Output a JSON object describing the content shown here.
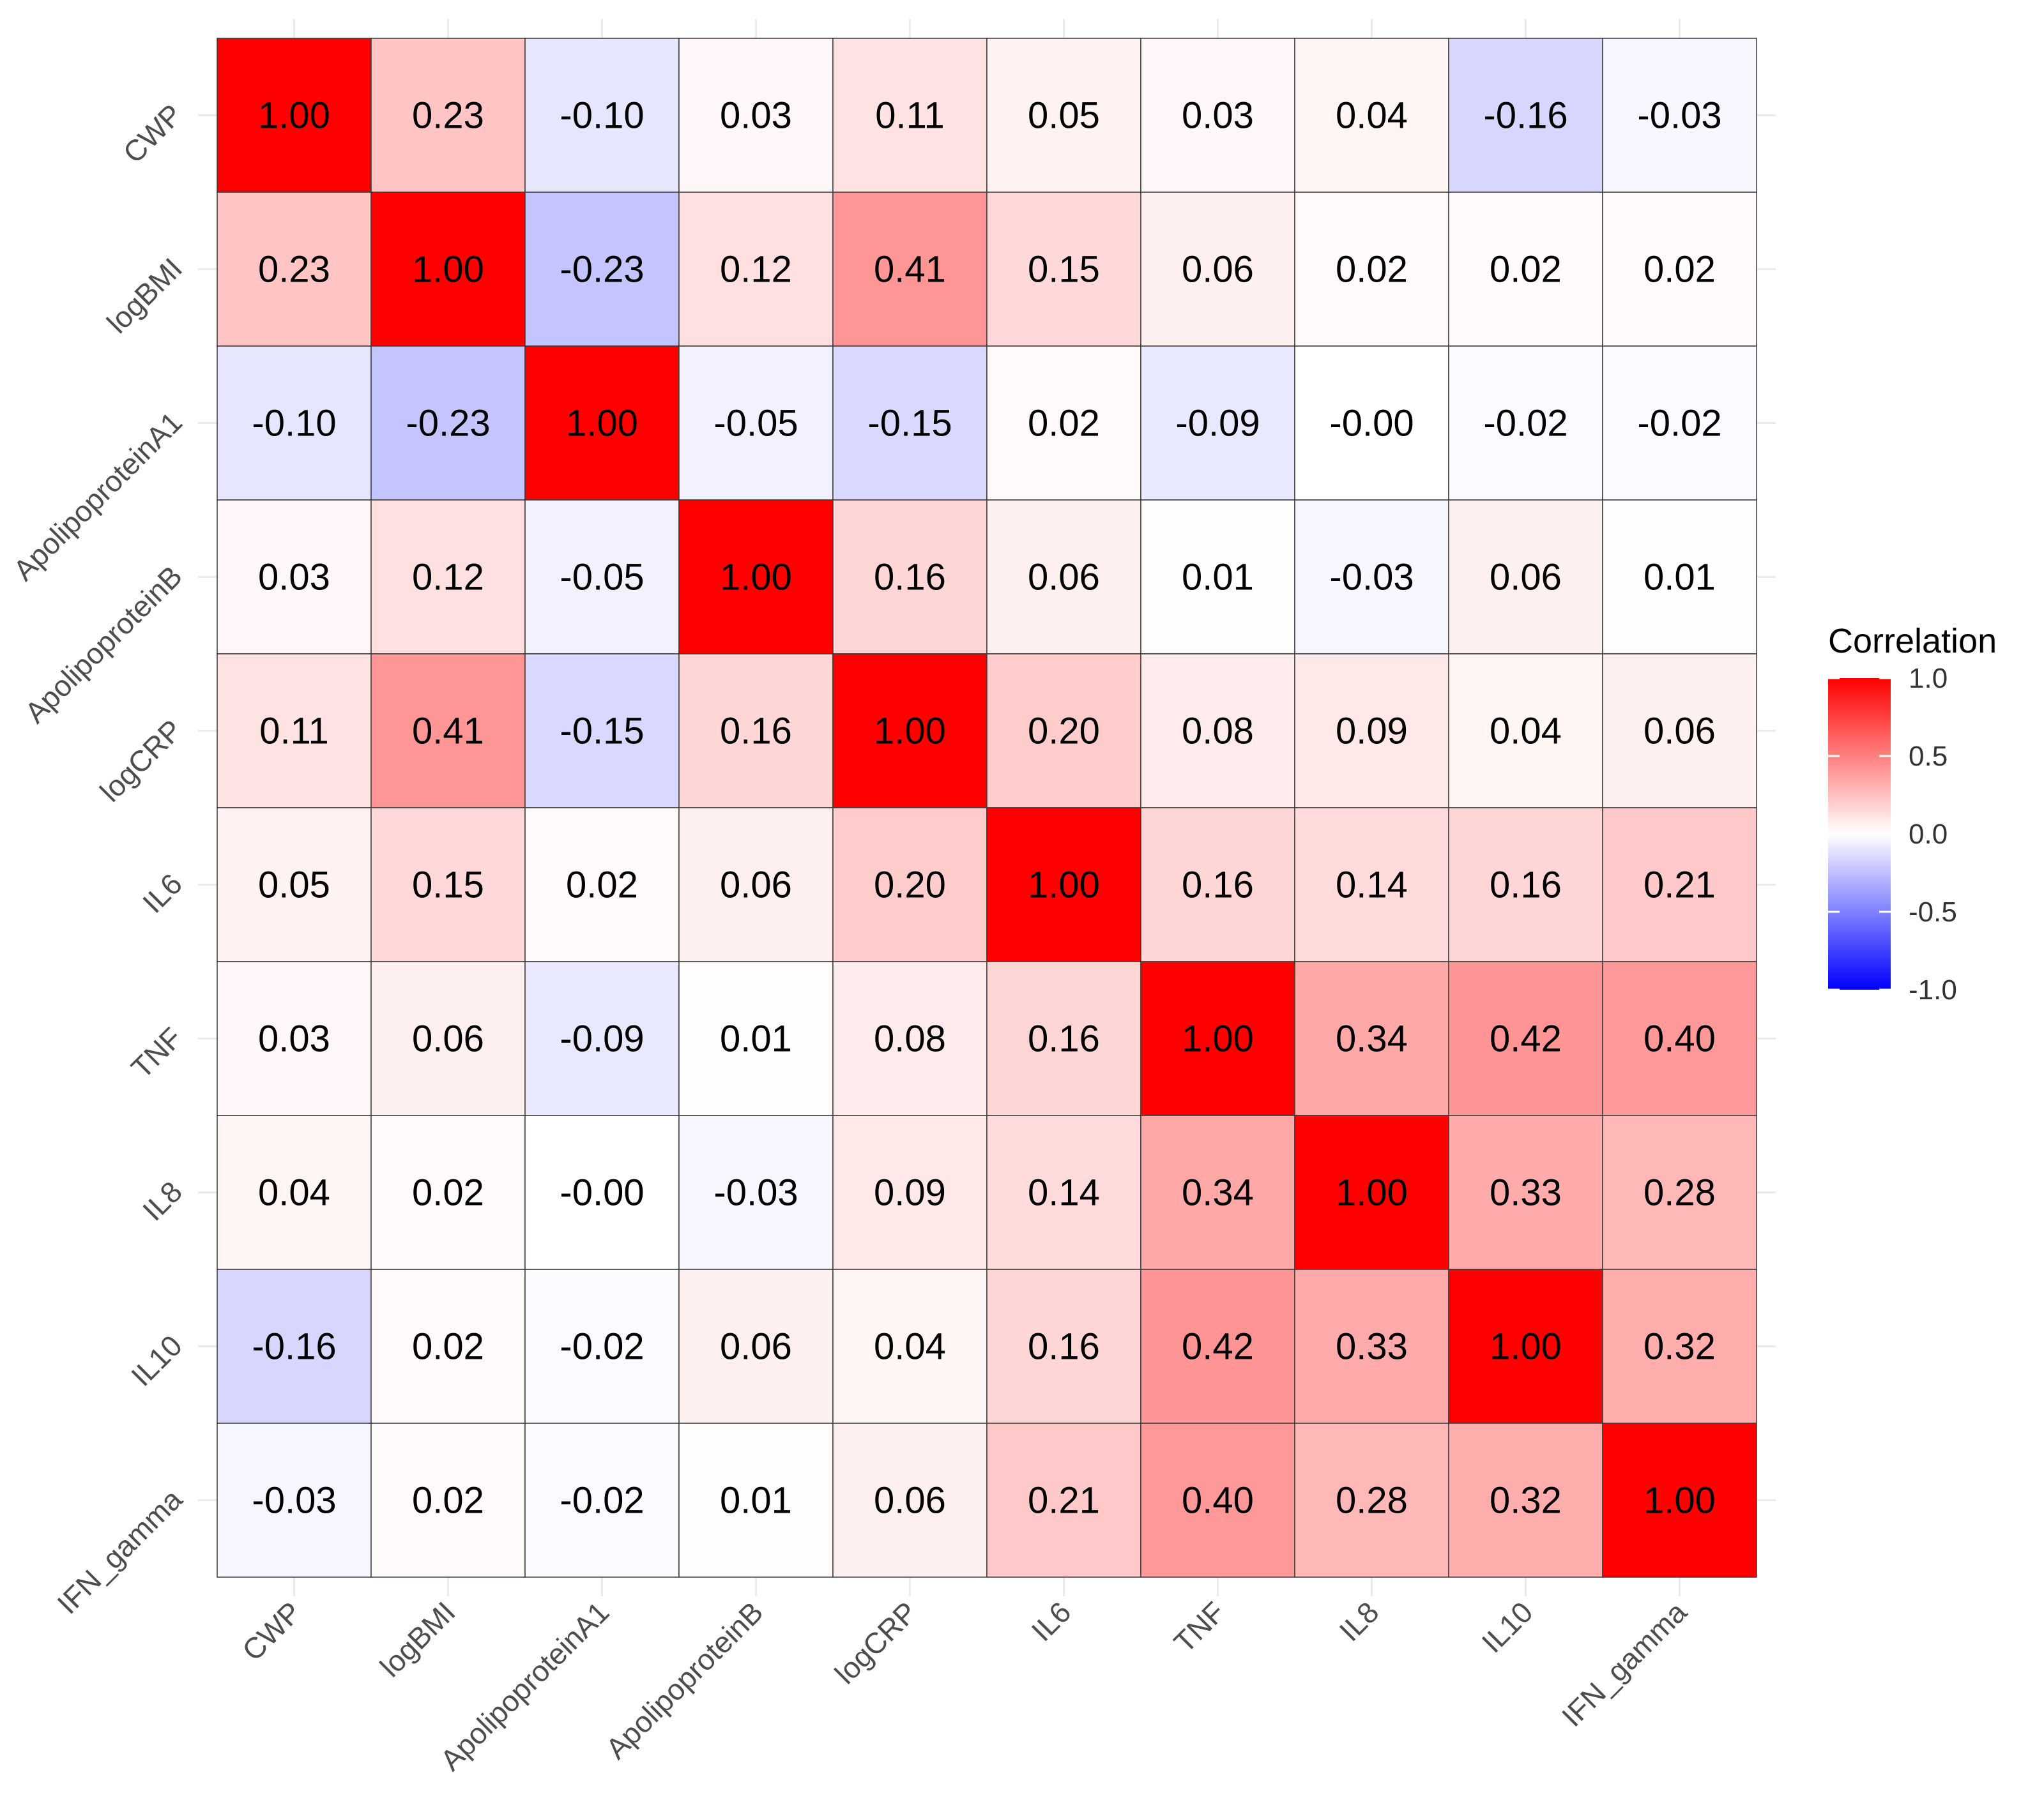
{
  "chart_data": {
    "type": "heatmap",
    "title": "",
    "xlabel": "",
    "ylabel": "",
    "variables": [
      "CWP",
      "logBMI",
      "ApolipoproteinA1",
      "ApolipoproteinB",
      "logCRP",
      "IL6",
      "TNF",
      "IL8",
      "IL10",
      "IFN_gamma"
    ],
    "matrix": [
      [
        1.0,
        0.23,
        -0.1,
        0.03,
        0.11,
        0.05,
        0.03,
        0.04,
        -0.16,
        -0.03
      ],
      [
        0.23,
        1.0,
        -0.23,
        0.12,
        0.41,
        0.15,
        0.06,
        0.02,
        0.02,
        0.02
      ],
      [
        -0.1,
        -0.23,
        1.0,
        -0.05,
        -0.15,
        0.02,
        -0.09,
        -0.0,
        -0.02,
        -0.02
      ],
      [
        0.03,
        0.12,
        -0.05,
        1.0,
        0.16,
        0.06,
        0.01,
        -0.03,
        0.06,
        0.01
      ],
      [
        0.11,
        0.41,
        -0.15,
        0.16,
        1.0,
        0.2,
        0.08,
        0.09,
        0.04,
        0.06
      ],
      [
        0.05,
        0.15,
        0.02,
        0.06,
        0.2,
        1.0,
        0.16,
        0.14,
        0.16,
        0.21
      ],
      [
        0.03,
        0.06,
        -0.09,
        0.01,
        0.08,
        0.16,
        1.0,
        0.34,
        0.42,
        0.4
      ],
      [
        0.04,
        0.02,
        -0.0,
        -0.03,
        0.09,
        0.14,
        0.34,
        1.0,
        0.33,
        0.28
      ],
      [
        -0.16,
        0.02,
        -0.02,
        0.06,
        0.04,
        0.16,
        0.42,
        0.33,
        1.0,
        0.32
      ],
      [
        -0.03,
        0.02,
        -0.02,
        0.01,
        0.06,
        0.21,
        0.4,
        0.28,
        0.32,
        1.0
      ]
    ],
    "matrix_labels": [
      [
        "1.00",
        "0.23",
        "-0.10",
        "0.03",
        "0.11",
        "0.05",
        "0.03",
        "0.04",
        "-0.16",
        "-0.03"
      ],
      [
        "0.23",
        "1.00",
        "-0.23",
        "0.12",
        "0.41",
        "0.15",
        "0.06",
        "0.02",
        "0.02",
        "0.02"
      ],
      [
        "-0.10",
        "-0.23",
        "1.00",
        "-0.05",
        "-0.15",
        "0.02",
        "-0.09",
        "-0.00",
        "-0.02",
        "-0.02"
      ],
      [
        "0.03",
        "0.12",
        "-0.05",
        "1.00",
        "0.16",
        "0.06",
        "0.01",
        "-0.03",
        "0.06",
        "0.01"
      ],
      [
        "0.11",
        "0.41",
        "-0.15",
        "0.16",
        "1.00",
        "0.20",
        "0.08",
        "0.09",
        "0.04",
        "0.06"
      ],
      [
        "0.05",
        "0.15",
        "0.02",
        "0.06",
        "0.20",
        "1.00",
        "0.16",
        "0.14",
        "0.16",
        "0.21"
      ],
      [
        "0.03",
        "0.06",
        "-0.09",
        "0.01",
        "0.08",
        "0.16",
        "1.00",
        "0.34",
        "0.42",
        "0.40"
      ],
      [
        "0.04",
        "0.02",
        "-0.00",
        "-0.03",
        "0.09",
        "0.14",
        "0.34",
        "1.00",
        "0.33",
        "0.28"
      ],
      [
        "-0.16",
        "0.02",
        "-0.02",
        "0.06",
        "0.04",
        "0.16",
        "0.42",
        "0.33",
        "1.00",
        "0.32"
      ],
      [
        "-0.03",
        "0.02",
        "-0.02",
        "0.01",
        "0.06",
        "0.21",
        "0.40",
        "0.28",
        "0.32",
        "1.00"
      ]
    ],
    "legend": {
      "title": "Correlation",
      "ticks": [
        "1.0",
        "0.5",
        "0.0",
        "-0.5",
        "-1.0"
      ],
      "tick_values": [
        1.0,
        0.5,
        0.0,
        -0.5,
        -1.0
      ],
      "range": [
        -1.0,
        1.0
      ],
      "colors": {
        "low": "#0000ff",
        "mid": "#ffffff",
        "high": "#ff0000"
      },
      "placement": "right"
    }
  }
}
